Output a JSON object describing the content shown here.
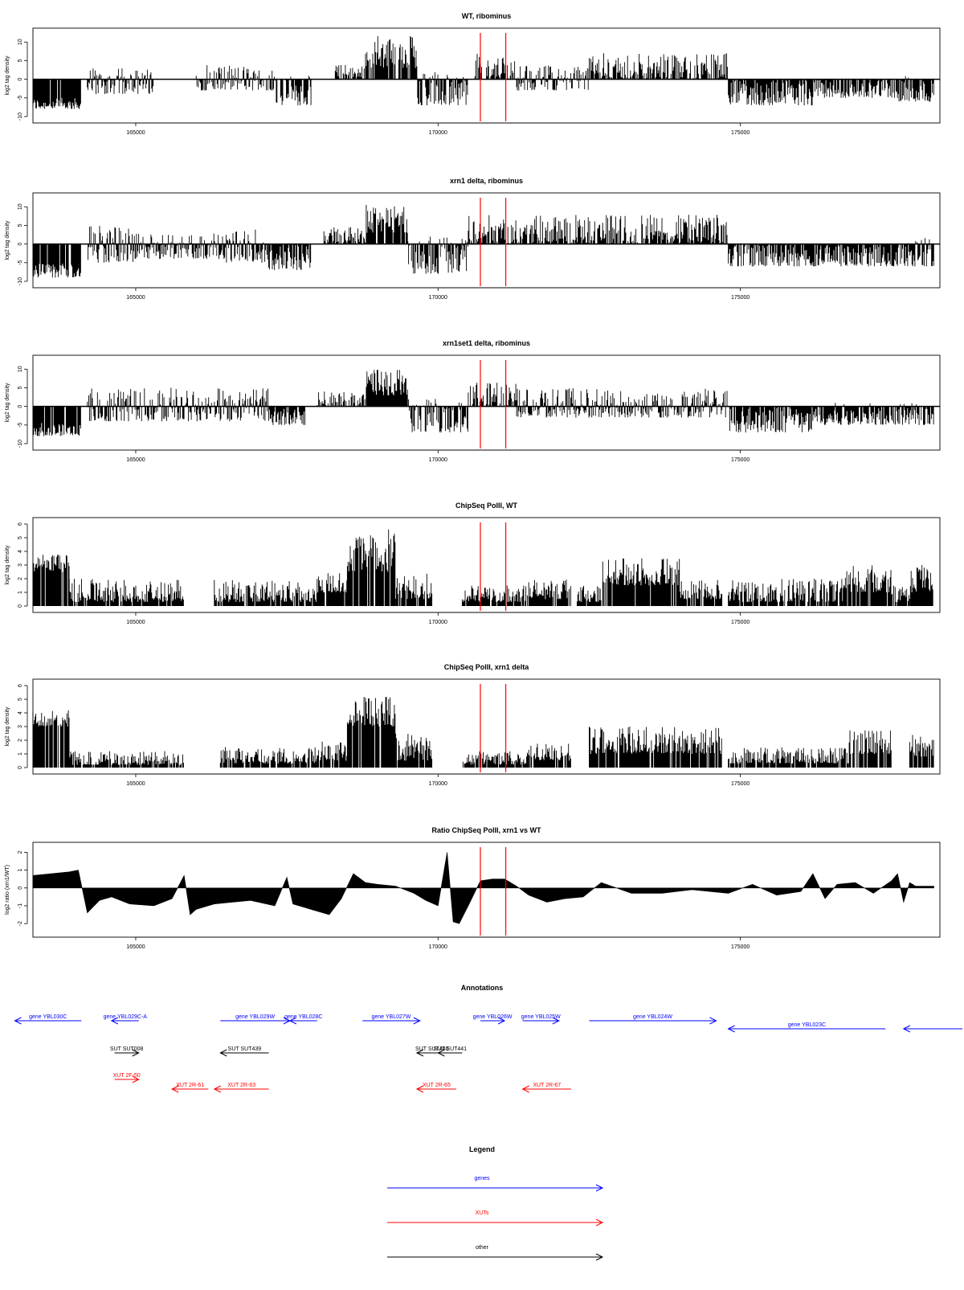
{
  "chart_data": [
    {
      "type": "bar",
      "title": "WT, ribominus",
      "xlabel": "",
      "ylabel": "log2 tag density",
      "xlim": [
        163300,
        178300
      ],
      "ylim": [
        -10,
        12
      ],
      "yticks": [
        10,
        5,
        0,
        -5,
        -10
      ],
      "ytick_labels": [
        "10",
        "5",
        "0",
        "-5",
        "-10"
      ],
      "xticks": [
        165000,
        170000,
        175000
      ],
      "xtick_labels": [
        "165000",
        "170000",
        "175000"
      ],
      "markers": [
        170700,
        171120
      ],
      "marker_color": "#ff0000",
      "segments": [
        {
          "start": 163300,
          "end": 164100,
          "lo": -8,
          "hi": -5
        },
        {
          "start": 164200,
          "end": 165300,
          "lo": -4,
          "hi": 3
        },
        {
          "start": 166000,
          "end": 167300,
          "lo": -3,
          "hi": 4
        },
        {
          "start": 167300,
          "end": 167900,
          "lo": -7,
          "hi": 1
        },
        {
          "start": 168300,
          "end": 168800,
          "lo": 0,
          "hi": 4
        },
        {
          "start": 168800,
          "end": 169650,
          "lo": 3,
          "hi": 12
        },
        {
          "start": 169650,
          "end": 170500,
          "lo": -7,
          "hi": 2
        },
        {
          "start": 170600,
          "end": 170720,
          "lo": 0,
          "hi": 7
        },
        {
          "start": 170800,
          "end": 171300,
          "lo": 0,
          "hi": 6
        },
        {
          "start": 171300,
          "end": 172500,
          "lo": -3,
          "hi": 4
        },
        {
          "start": 172500,
          "end": 174800,
          "lo": 0,
          "hi": 7
        },
        {
          "start": 174800,
          "end": 176200,
          "lo": -7,
          "hi": 0
        },
        {
          "start": 176200,
          "end": 177600,
          "lo": -5,
          "hi": 0
        },
        {
          "start": 177600,
          "end": 178200,
          "lo": -6,
          "hi": 1
        }
      ]
    },
    {
      "type": "bar",
      "title": "xrn1 delta, ribominus",
      "xlabel": "",
      "ylabel": "log2 tag density",
      "xlim": [
        163300,
        178300
      ],
      "ylim": [
        -10,
        12
      ],
      "yticks": [
        10,
        5,
        0,
        -5,
        -10
      ],
      "ytick_labels": [
        "10",
        "5",
        "0",
        "-5",
        "-10"
      ],
      "xticks": [
        165000,
        170000,
        175000
      ],
      "xtick_labels": [
        "165000",
        "170000",
        "175000"
      ],
      "markers": [
        170700,
        171120
      ],
      "marker_color": "#ff0000",
      "segments": [
        {
          "start": 163300,
          "end": 164100,
          "lo": -9,
          "hi": -5
        },
        {
          "start": 164200,
          "end": 165000,
          "lo": -5,
          "hi": 5
        },
        {
          "start": 165000,
          "end": 166500,
          "lo": -4,
          "hi": 3
        },
        {
          "start": 166500,
          "end": 167200,
          "lo": -5,
          "hi": 4
        },
        {
          "start": 167200,
          "end": 167900,
          "lo": -7,
          "hi": 0
        },
        {
          "start": 168100,
          "end": 168800,
          "lo": 0,
          "hi": 5
        },
        {
          "start": 168800,
          "end": 169500,
          "lo": 3,
          "hi": 11
        },
        {
          "start": 169500,
          "end": 170500,
          "lo": -8,
          "hi": 2
        },
        {
          "start": 170500,
          "end": 170700,
          "lo": 0,
          "hi": 8
        },
        {
          "start": 170700,
          "end": 171300,
          "lo": 0,
          "hi": 8
        },
        {
          "start": 171300,
          "end": 174800,
          "lo": 0,
          "hi": 8
        },
        {
          "start": 174800,
          "end": 177600,
          "lo": -6,
          "hi": 0
        },
        {
          "start": 177600,
          "end": 178200,
          "lo": -6,
          "hi": 2
        }
      ]
    },
    {
      "type": "bar",
      "title": "xrn1set1 delta, ribominus",
      "xlabel": "",
      "ylabel": "log2 tag density",
      "xlim": [
        163300,
        178300
      ],
      "ylim": [
        -10,
        12
      ],
      "yticks": [
        10,
        5,
        0,
        -5,
        -10
      ],
      "ytick_labels": [
        "10",
        "5",
        "0",
        "-5",
        "-10"
      ],
      "xticks": [
        165000,
        170000,
        175000
      ],
      "xtick_labels": [
        "165000",
        "170000",
        "175000"
      ],
      "markers": [
        170700,
        171120
      ],
      "marker_color": "#ff0000",
      "segments": [
        {
          "start": 163300,
          "end": 164100,
          "lo": -8,
          "hi": -4
        },
        {
          "start": 164200,
          "end": 165500,
          "lo": -4,
          "hi": 5
        },
        {
          "start": 165500,
          "end": 167200,
          "lo": -4,
          "hi": 5
        },
        {
          "start": 167200,
          "end": 167800,
          "lo": -5,
          "hi": 0
        },
        {
          "start": 168000,
          "end": 168800,
          "lo": 0,
          "hi": 4
        },
        {
          "start": 168800,
          "end": 169500,
          "lo": 3,
          "hi": 10
        },
        {
          "start": 169500,
          "end": 170500,
          "lo": -7,
          "hi": 2
        },
        {
          "start": 170500,
          "end": 170700,
          "lo": 0,
          "hi": 7
        },
        {
          "start": 170700,
          "end": 171300,
          "lo": 0,
          "hi": 7
        },
        {
          "start": 171300,
          "end": 174800,
          "lo": -3,
          "hi": 5
        },
        {
          "start": 174800,
          "end": 176200,
          "lo": -7,
          "hi": 0
        },
        {
          "start": 176200,
          "end": 177800,
          "lo": -5,
          "hi": 1
        },
        {
          "start": 177800,
          "end": 178200,
          "lo": -5,
          "hi": 1
        }
      ]
    },
    {
      "type": "bar",
      "title": "ChipSeq PolII, WT",
      "xlabel": "",
      "ylabel": "log2 tag density",
      "xlim": [
        163300,
        178300
      ],
      "ylim": [
        0,
        6
      ],
      "yticks": [
        0,
        1,
        2,
        3,
        4,
        5,
        6
      ],
      "ytick_labels": [
        "0",
        "1",
        "2",
        "3",
        "4",
        "5",
        "6"
      ],
      "xticks": [
        165000,
        170000,
        175000
      ],
      "xtick_labels": [
        "165000",
        "170000",
        "175000"
      ],
      "markers": [
        170700,
        171120
      ],
      "marker_color": "#ff0000",
      "segments": [
        {
          "start": 163300,
          "end": 163900,
          "lo": 2.5,
          "hi": 3.8
        },
        {
          "start": 163900,
          "end": 165800,
          "lo": 0.3,
          "hi": 2
        },
        {
          "start": 166300,
          "end": 167300,
          "lo": 0.3,
          "hi": 2
        },
        {
          "start": 167300,
          "end": 168000,
          "lo": 0.3,
          "hi": 2
        },
        {
          "start": 168000,
          "end": 168500,
          "lo": 1,
          "hi": 2.5
        },
        {
          "start": 168500,
          "end": 169300,
          "lo": 2.5,
          "hi": 5.7
        },
        {
          "start": 169300,
          "end": 169900,
          "lo": 0.5,
          "hi": 2.5
        },
        {
          "start": 170400,
          "end": 171500,
          "lo": 0.3,
          "hi": 1.5
        },
        {
          "start": 171500,
          "end": 172200,
          "lo": 0.5,
          "hi": 2
        },
        {
          "start": 172300,
          "end": 172700,
          "lo": 0.3,
          "hi": 1.5
        },
        {
          "start": 172700,
          "end": 174000,
          "lo": 1.5,
          "hi": 3.5
        },
        {
          "start": 174000,
          "end": 174700,
          "lo": 0.5,
          "hi": 2
        },
        {
          "start": 174800,
          "end": 176700,
          "lo": 0.3,
          "hi": 2
        },
        {
          "start": 176700,
          "end": 177500,
          "lo": 1,
          "hi": 3
        },
        {
          "start": 177500,
          "end": 177800,
          "lo": 0.3,
          "hi": 1.5
        },
        {
          "start": 177800,
          "end": 178200,
          "lo": 1,
          "hi": 3
        }
      ]
    },
    {
      "type": "bar",
      "title": "ChipSeq PolII, xrn1 delta",
      "xlabel": "",
      "ylabel": "log2 tag density",
      "xlim": [
        163300,
        178300
      ],
      "ylim": [
        0,
        6
      ],
      "yticks": [
        0,
        1,
        2,
        3,
        4,
        5,
        6
      ],
      "ytick_labels": [
        "0",
        "1",
        "2",
        "3",
        "4",
        "5",
        "6"
      ],
      "xticks": [
        165000,
        170000,
        175000
      ],
      "xtick_labels": [
        "165000",
        "170000",
        "175000"
      ],
      "markers": [
        170700,
        171120
      ],
      "marker_color": "#ff0000",
      "segments": [
        {
          "start": 163300,
          "end": 163900,
          "lo": 3,
          "hi": 4.2
        },
        {
          "start": 163900,
          "end": 165800,
          "lo": 0.2,
          "hi": 1.2
        },
        {
          "start": 166400,
          "end": 168000,
          "lo": 0.3,
          "hi": 1.5
        },
        {
          "start": 168000,
          "end": 168500,
          "lo": 0.5,
          "hi": 2
        },
        {
          "start": 168500,
          "end": 169300,
          "lo": 3,
          "hi": 5.3
        },
        {
          "start": 169300,
          "end": 169900,
          "lo": 0.5,
          "hi": 2.5
        },
        {
          "start": 170400,
          "end": 171500,
          "lo": 0.2,
          "hi": 1.2
        },
        {
          "start": 171500,
          "end": 172200,
          "lo": 0.5,
          "hi": 1.8
        },
        {
          "start": 172500,
          "end": 174700,
          "lo": 1,
          "hi": 3
        },
        {
          "start": 174800,
          "end": 176800,
          "lo": 0.3,
          "hi": 1.5
        },
        {
          "start": 176800,
          "end": 177500,
          "lo": 1,
          "hi": 2.8
        },
        {
          "start": 177800,
          "end": 178200,
          "lo": 0.8,
          "hi": 2.5
        }
      ]
    },
    {
      "type": "area",
      "title": "Ratio ChipSeq PolII, xrn1 vs WT",
      "xlabel": "",
      "ylabel": "log2 ratio (xrn1/WT)",
      "xlim": [
        163300,
        178300
      ],
      "ylim": [
        -2.4,
        2.2
      ],
      "yticks": [
        2,
        1,
        0,
        -1,
        -2
      ],
      "ytick_labels": [
        "2",
        "1",
        "0",
        "-1",
        "-2"
      ],
      "xticks": [
        165000,
        170000,
        175000
      ],
      "xtick_labels": [
        "165000",
        "170000",
        "175000"
      ],
      "markers": [
        170700,
        171120
      ],
      "marker_color": "#ff0000",
      "x": [
        163300,
        163600,
        163900,
        164050,
        164200,
        164400,
        164600,
        164900,
        165300,
        165600,
        165800,
        165900,
        166000,
        166300,
        166600,
        166900,
        167300,
        167500,
        167600,
        167900,
        168200,
        168400,
        168600,
        168800,
        169000,
        169300,
        169600,
        169800,
        170000,
        170150,
        170250,
        170350,
        170500,
        170700,
        170900,
        171100,
        171300,
        171500,
        171800,
        172100,
        172400,
        172700,
        173200,
        173700,
        174200,
        174800,
        175200,
        175600,
        176000,
        176200,
        176400,
        176600,
        176900,
        177200,
        177500,
        177600,
        177700,
        177800,
        177900,
        178100,
        178200
      ],
      "y": [
        0.7,
        0.8,
        0.9,
        1.0,
        -1.4,
        -0.7,
        -0.5,
        -0.9,
        -1.0,
        -0.6,
        0.7,
        -1.5,
        -1.2,
        -0.9,
        -0.8,
        -0.7,
        -1.0,
        0.6,
        -0.9,
        -1.2,
        -1.5,
        -0.6,
        0.8,
        0.3,
        0.2,
        0.1,
        -0.3,
        -0.7,
        -1.0,
        2.0,
        -1.9,
        -2.0,
        -1.0,
        0.4,
        0.5,
        0.5,
        0.1,
        -0.4,
        -0.8,
        -0.6,
        -0.5,
        0.3,
        -0.3,
        -0.3,
        -0.1,
        -0.3,
        0.2,
        -0.4,
        -0.2,
        0.8,
        -0.6,
        0.2,
        0.3,
        -0.3,
        0.4,
        0.8,
        -0.8,
        0.3,
        0.1,
        0.1,
        0.1
      ]
    }
  ],
  "annotations": {
    "title": "Annotations",
    "xlim": [
      163300,
      178300
    ],
    "features": [
      {
        "label": "gene YBL030C",
        "kind": "gene",
        "dir": "left",
        "start": 163000,
        "end": 164100,
        "row": 0
      },
      {
        "label": "gene YBL029C-A",
        "kind": "gene",
        "dir": "left",
        "start": 164600,
        "end": 165050,
        "row": 0
      },
      {
        "label": "gene YBL029W",
        "kind": "gene",
        "dir": "right",
        "start": 166400,
        "end": 167550,
        "row": 0
      },
      {
        "label": "gene YBL028C",
        "kind": "gene",
        "dir": "left",
        "start": 167550,
        "end": 168000,
        "row": 0
      },
      {
        "label": "gene YBL027W",
        "kind": "gene",
        "dir": "right",
        "start": 168750,
        "end": 169700,
        "row": 0
      },
      {
        "label": "gene YBL026W",
        "kind": "gene",
        "dir": "right",
        "start": 170700,
        "end": 171100,
        "row": 0
      },
      {
        "label": "gene YBL025W",
        "kind": "gene",
        "dir": "right",
        "start": 171400,
        "end": 172000,
        "row": 0
      },
      {
        "label": "gene YBL024W",
        "kind": "gene",
        "dir": "right",
        "start": 172500,
        "end": 174600,
        "row": 0
      },
      {
        "label": "gene YBL023C",
        "kind": "gene",
        "dir": "left",
        "start": 174800,
        "end": 177400,
        "row": 1
      },
      {
        "label": "",
        "kind": "gene",
        "dir": "left",
        "start": 177700,
        "end": 178800,
        "row": 1
      },
      {
        "label": "SUT SUT008",
        "kind": "other",
        "dir": "right",
        "start": 164650,
        "end": 165050,
        "row": 2
      },
      {
        "label": "SUT SUT439",
        "kind": "other",
        "dir": "left",
        "start": 166400,
        "end": 167200,
        "row": 2
      },
      {
        "label": "SUT SUT440",
        "kind": "other",
        "dir": "left",
        "start": 169650,
        "end": 170150,
        "row": 2
      },
      {
        "label": "SUT SUT441",
        "kind": "other",
        "dir": "left",
        "start": 170000,
        "end": 170400,
        "row": 2
      },
      {
        "label": "XUT 2F-50",
        "kind": "xut",
        "dir": "right",
        "start": 164650,
        "end": 165050,
        "row": 3
      },
      {
        "label": "XUT 2R-61",
        "kind": "xut",
        "dir": "left",
        "start": 165600,
        "end": 166200,
        "row": 4
      },
      {
        "label": "XUT 2R-63",
        "kind": "xut",
        "dir": "left",
        "start": 166300,
        "end": 167200,
        "row": 4
      },
      {
        "label": "XUT 2R-65",
        "kind": "xut",
        "dir": "left",
        "start": 169650,
        "end": 170300,
        "row": 4
      },
      {
        "label": "XUT 2R-67",
        "kind": "xut",
        "dir": "left",
        "start": 171400,
        "end": 172200,
        "row": 4
      }
    ]
  },
  "legend": {
    "title": "Legend",
    "entries": [
      {
        "label": "genes",
        "color": "#0000ff"
      },
      {
        "label": "XUTs",
        "color": "#ff0000"
      },
      {
        "label": "other",
        "color": "#000000"
      }
    ]
  },
  "colors": {
    "gene": "#0000ff",
    "xut": "#ff0000",
    "other": "#000000",
    "marker": "#ff0000",
    "data": "#000000"
  }
}
